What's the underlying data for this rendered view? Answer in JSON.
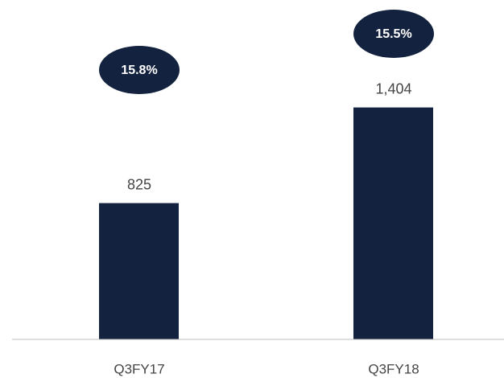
{
  "chart_data": {
    "type": "bar",
    "categories": [
      "Q3FY17",
      "Q3FY18"
    ],
    "values": [
      825,
      1404
    ],
    "value_labels": [
      "825",
      "1,404"
    ],
    "color": "#13223f",
    "ylim": [
      0,
      1850
    ],
    "annotations": {
      "values": [
        15.8,
        15.5
      ],
      "value_labels": [
        "15.8%",
        "15.5%"
      ],
      "color": "#13223f"
    }
  }
}
